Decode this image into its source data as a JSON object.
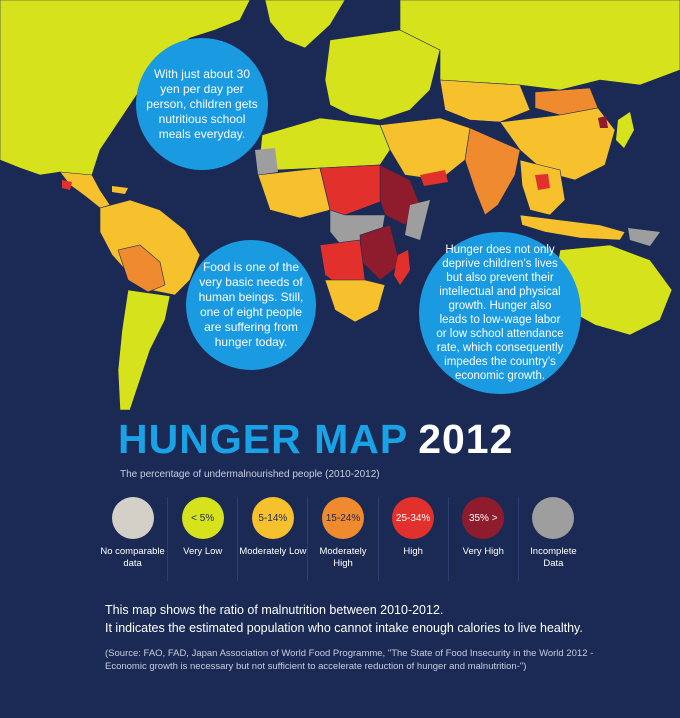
{
  "bubbles": [
    {
      "text": "With just about 30 yen per day per person, children gets nutritious school meals everyday."
    },
    {
      "text": "Food is one of the very basic needs of human beings. Still, one of eight people are suffering from hunger today."
    },
    {
      "text": "Hunger does not only deprive children’s lives but also prevent their intellectual and physical growth. Hunger also leads to low-wage labor or low school attendance rate, which consequently impedes the country’s economic growth."
    }
  ],
  "title": {
    "main": "HUNGER MAP",
    "year": "2012"
  },
  "subtitle": "The percentage of undermalnourished people (2010-2012)",
  "legend": [
    {
      "range": "",
      "label": "No comparable data",
      "color": "#d4d0c8",
      "text_color": "#333333"
    },
    {
      "range": "< 5%",
      "label": "Very Low",
      "color": "#d6e21c",
      "text_color": "#1b2a55"
    },
    {
      "range": "5-14%",
      "label": "Moderately Low",
      "color": "#f6c12c",
      "text_color": "#1b2a55"
    },
    {
      "range": "15-24%",
      "label": "Moderately High",
      "color": "#ef8a2e",
      "text_color": "#1b2a55"
    },
    {
      "range": "25-34%",
      "label": "High",
      "color": "#e2302c",
      "text_color": "#ffffff"
    },
    {
      "range": "35% >",
      "label": "Very High",
      "color": "#8e1c2c",
      "text_color": "#ffffff"
    },
    {
      "range": "",
      "label": "Incomplete Data",
      "color": "#9e9e9e",
      "text_color": "#333333"
    }
  ],
  "description": {
    "line1": "This map shows the ratio of malnutrition between 2010-2012.",
    "line2": "It indicates the estimated population who cannot intake enough calories to live healthy."
  },
  "source": "(Source: FAO, FAD, Japan Association of World Food Programme, \"The State of Food Insecurity in the World 2012 -Economic growth is necessary but not sufficient to accelerate reduction of hunger and malnutrition-\")",
  "colors": {
    "ocean": "#1b2a55",
    "very_low": "#d6e21c",
    "moderately_low": "#f6c12c",
    "moderately_high": "#ef8a2e",
    "high": "#e2302c",
    "very_high": "#8e1c2c",
    "incomplete": "#9e9e9e",
    "bubble": "#1a9ae0",
    "accent": "#1aa2e6"
  }
}
